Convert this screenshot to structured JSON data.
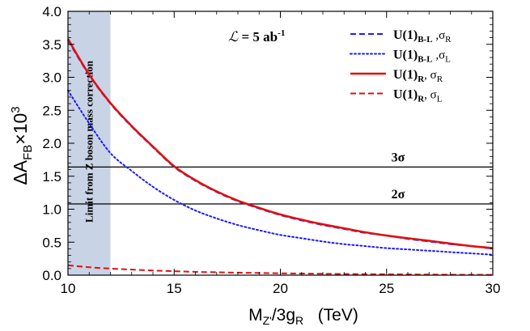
{
  "chart_data": {
    "type": "line",
    "xlabel": "M",
    "xlabel_sub": "Z'",
    "xlabel_mid": "/3g",
    "xlabel_sub2": "R",
    "xlabel_unit": "(TeV)",
    "ylabel": "ΔA",
    "ylabel_sub": "FB",
    "ylabel_suffix": "×10",
    "ylabel_sup": "3",
    "xlim": [
      10,
      30
    ],
    "ylim": [
      0,
      4
    ],
    "xticks": [
      10,
      15,
      20,
      25,
      30
    ],
    "xtick_labels": [
      "10",
      "15",
      "20",
      "25",
      "30"
    ],
    "yticks": [
      0,
      0.5,
      1,
      1.5,
      2,
      2.5,
      3,
      3.5,
      4
    ],
    "ytick_labels": [
      "0.0",
      "0.5",
      "1.0",
      "1.5",
      "2.0",
      "2.5",
      "3.0",
      "3.5",
      "4.0"
    ],
    "x": [
      10,
      11,
      12,
      13,
      14,
      15,
      16,
      17,
      18,
      19,
      20,
      21,
      22,
      23,
      24,
      25,
      26,
      27,
      28,
      29,
      30
    ],
    "series": [
      {
        "name": "U(1)B-L, σR",
        "label_main": "U(1)",
        "label_sub": "B-L",
        "label_tail": " ,σ",
        "label_tail_sub": "R",
        "color": "#1a1aff",
        "style": "dashed",
        "values": [
          3.56,
          3.03,
          2.6,
          2.25,
          1.94,
          1.64,
          1.43,
          1.26,
          1.12,
          1.01,
          0.91,
          0.83,
          0.76,
          0.7,
          0.64,
          0.6,
          0.55,
          0.51,
          0.47,
          0.44,
          0.4
        ]
      },
      {
        "name": "U(1)B-L, σL",
        "label_main": "U(1)",
        "label_sub": "B-L",
        "label_tail": " ,σ",
        "label_tail_sub": "L",
        "color": "#1a1aff",
        "style": "dotted",
        "values": [
          2.8,
          2.3,
          1.85,
          1.58,
          1.34,
          1.14,
          0.98,
          0.86,
          0.76,
          0.68,
          0.61,
          0.56,
          0.51,
          0.47,
          0.44,
          0.41,
          0.39,
          0.37,
          0.35,
          0.33,
          0.31
        ]
      },
      {
        "name": "U(1)R, σR",
        "label_main": "U(1)",
        "label_sub": "R",
        "label_tail": ", σ",
        "label_tail_sub": "R",
        "color": "#e01010",
        "style": "solid",
        "values": [
          3.58,
          3.04,
          2.61,
          2.26,
          1.95,
          1.65,
          1.44,
          1.27,
          1.13,
          1.02,
          0.92,
          0.84,
          0.77,
          0.71,
          0.65,
          0.6,
          0.56,
          0.52,
          0.48,
          0.44,
          0.41
        ]
      },
      {
        "name": "U(1)R, σL",
        "label_main": "U(1)",
        "label_sub": "R",
        "label_tail": ", σ",
        "label_tail_sub": "L",
        "color": "#e01010",
        "style": "dashed",
        "values": [
          0.15,
          0.12,
          0.1,
          0.085,
          0.07,
          0.06,
          0.05,
          0.044,
          0.038,
          0.033,
          0.028,
          0.024,
          0.021,
          0.018,
          0.015,
          0.013,
          0.011,
          0.009,
          0.007,
          0.006,
          0.005
        ]
      }
    ],
    "hlines": [
      {
        "y": 1.64,
        "label": "3σ"
      },
      {
        "y": 1.08,
        "label": "2σ"
      }
    ],
    "shaded_region": {
      "x": [
        10,
        12
      ],
      "color": "#c9d3e6",
      "label": "Limit from Z boson mass correction"
    },
    "luminosity_label": {
      "symbol": "ℒ",
      "eq": " = 5 ab",
      "sup": "-1"
    },
    "legend": "top-right"
  }
}
